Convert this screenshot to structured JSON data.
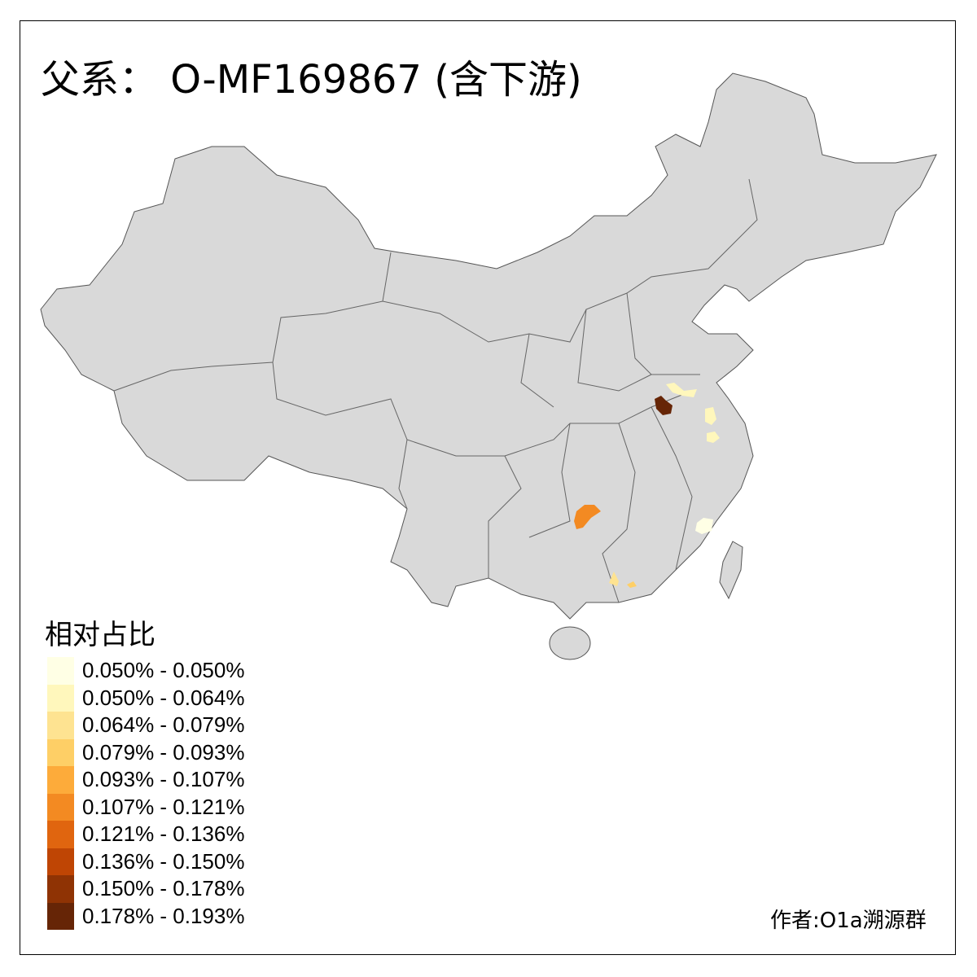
{
  "title": "父系： O-MF169867 (含下游)",
  "legend": {
    "title": "相对占比",
    "items": [
      {
        "label": "0.050% - 0.050%",
        "color": "#FFFFE5"
      },
      {
        "label": "0.050% - 0.064%",
        "color": "#FFF7BC"
      },
      {
        "label": "0.064% - 0.079%",
        "color": "#FEE391"
      },
      {
        "label": "0.079% - 0.093%",
        "color": "#FECF66"
      },
      {
        "label": "0.093% - 0.107%",
        "color": "#FDAB3A"
      },
      {
        "label": "0.107% - 0.121%",
        "color": "#F38A22"
      },
      {
        "label": "0.121% - 0.136%",
        "color": "#E0650F"
      },
      {
        "label": "0.136% - 0.150%",
        "color": "#BF4504"
      },
      {
        "label": "0.150% - 0.178%",
        "color": "#8F3304"
      },
      {
        "label": "0.178% - 0.193%",
        "color": "#662506"
      }
    ]
  },
  "map": {
    "base_color": "#D9D9D9",
    "border_color": "#666666"
  },
  "author": "作者:O1a溯源群"
}
